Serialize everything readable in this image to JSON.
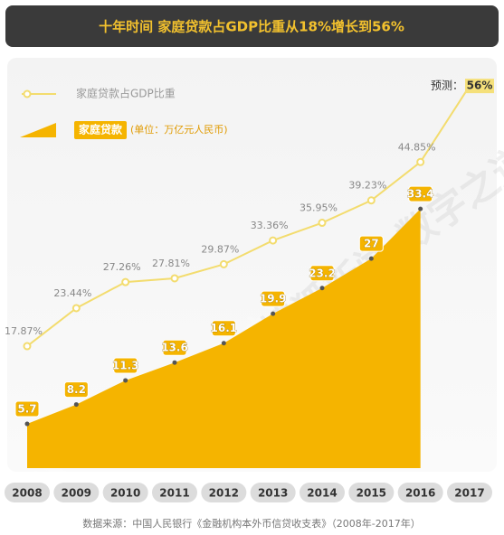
{
  "chart_data": {
    "type": "combo",
    "title": "十年时间 家庭贷款占GDP比重从18%增长到56%",
    "categories": [
      "2008",
      "2009",
      "2010",
      "2011",
      "2012",
      "2013",
      "2014",
      "2015",
      "2016",
      "2017"
    ],
    "series": [
      {
        "name": "家庭贷款占GDP比重",
        "type": "line",
        "axis": "y2",
        "color": "#f3dc6e",
        "values": [
          17.87,
          23.44,
          27.26,
          27.81,
          29.87,
          33.36,
          35.95,
          39.23,
          44.85,
          56
        ],
        "value_labels": [
          "17.87%",
          "23.44%",
          "27.26%",
          "27.81%",
          "29.87%",
          "33.36%",
          "35.95%",
          "39.23%",
          "44.85%",
          "56%"
        ]
      },
      {
        "name": "家庭贷款",
        "type": "area",
        "color": "#f5b400",
        "unit": "(单位：万亿元人民币)",
        "values": [
          5.7,
          8.2,
          11.3,
          13.6,
          16.1,
          19.9,
          23.2,
          27,
          33.4,
          null
        ]
      }
    ],
    "annotation": "预测：",
    "ylim": [
      0,
      51
    ],
    "y2lim": [
      0,
      58
    ],
    "watermark": "MATRIX 搜狐新闻 数字之道",
    "source": "数据来源：中国人民银行《金融机构本外币信贷收支表》（2008年-2017年）"
  }
}
